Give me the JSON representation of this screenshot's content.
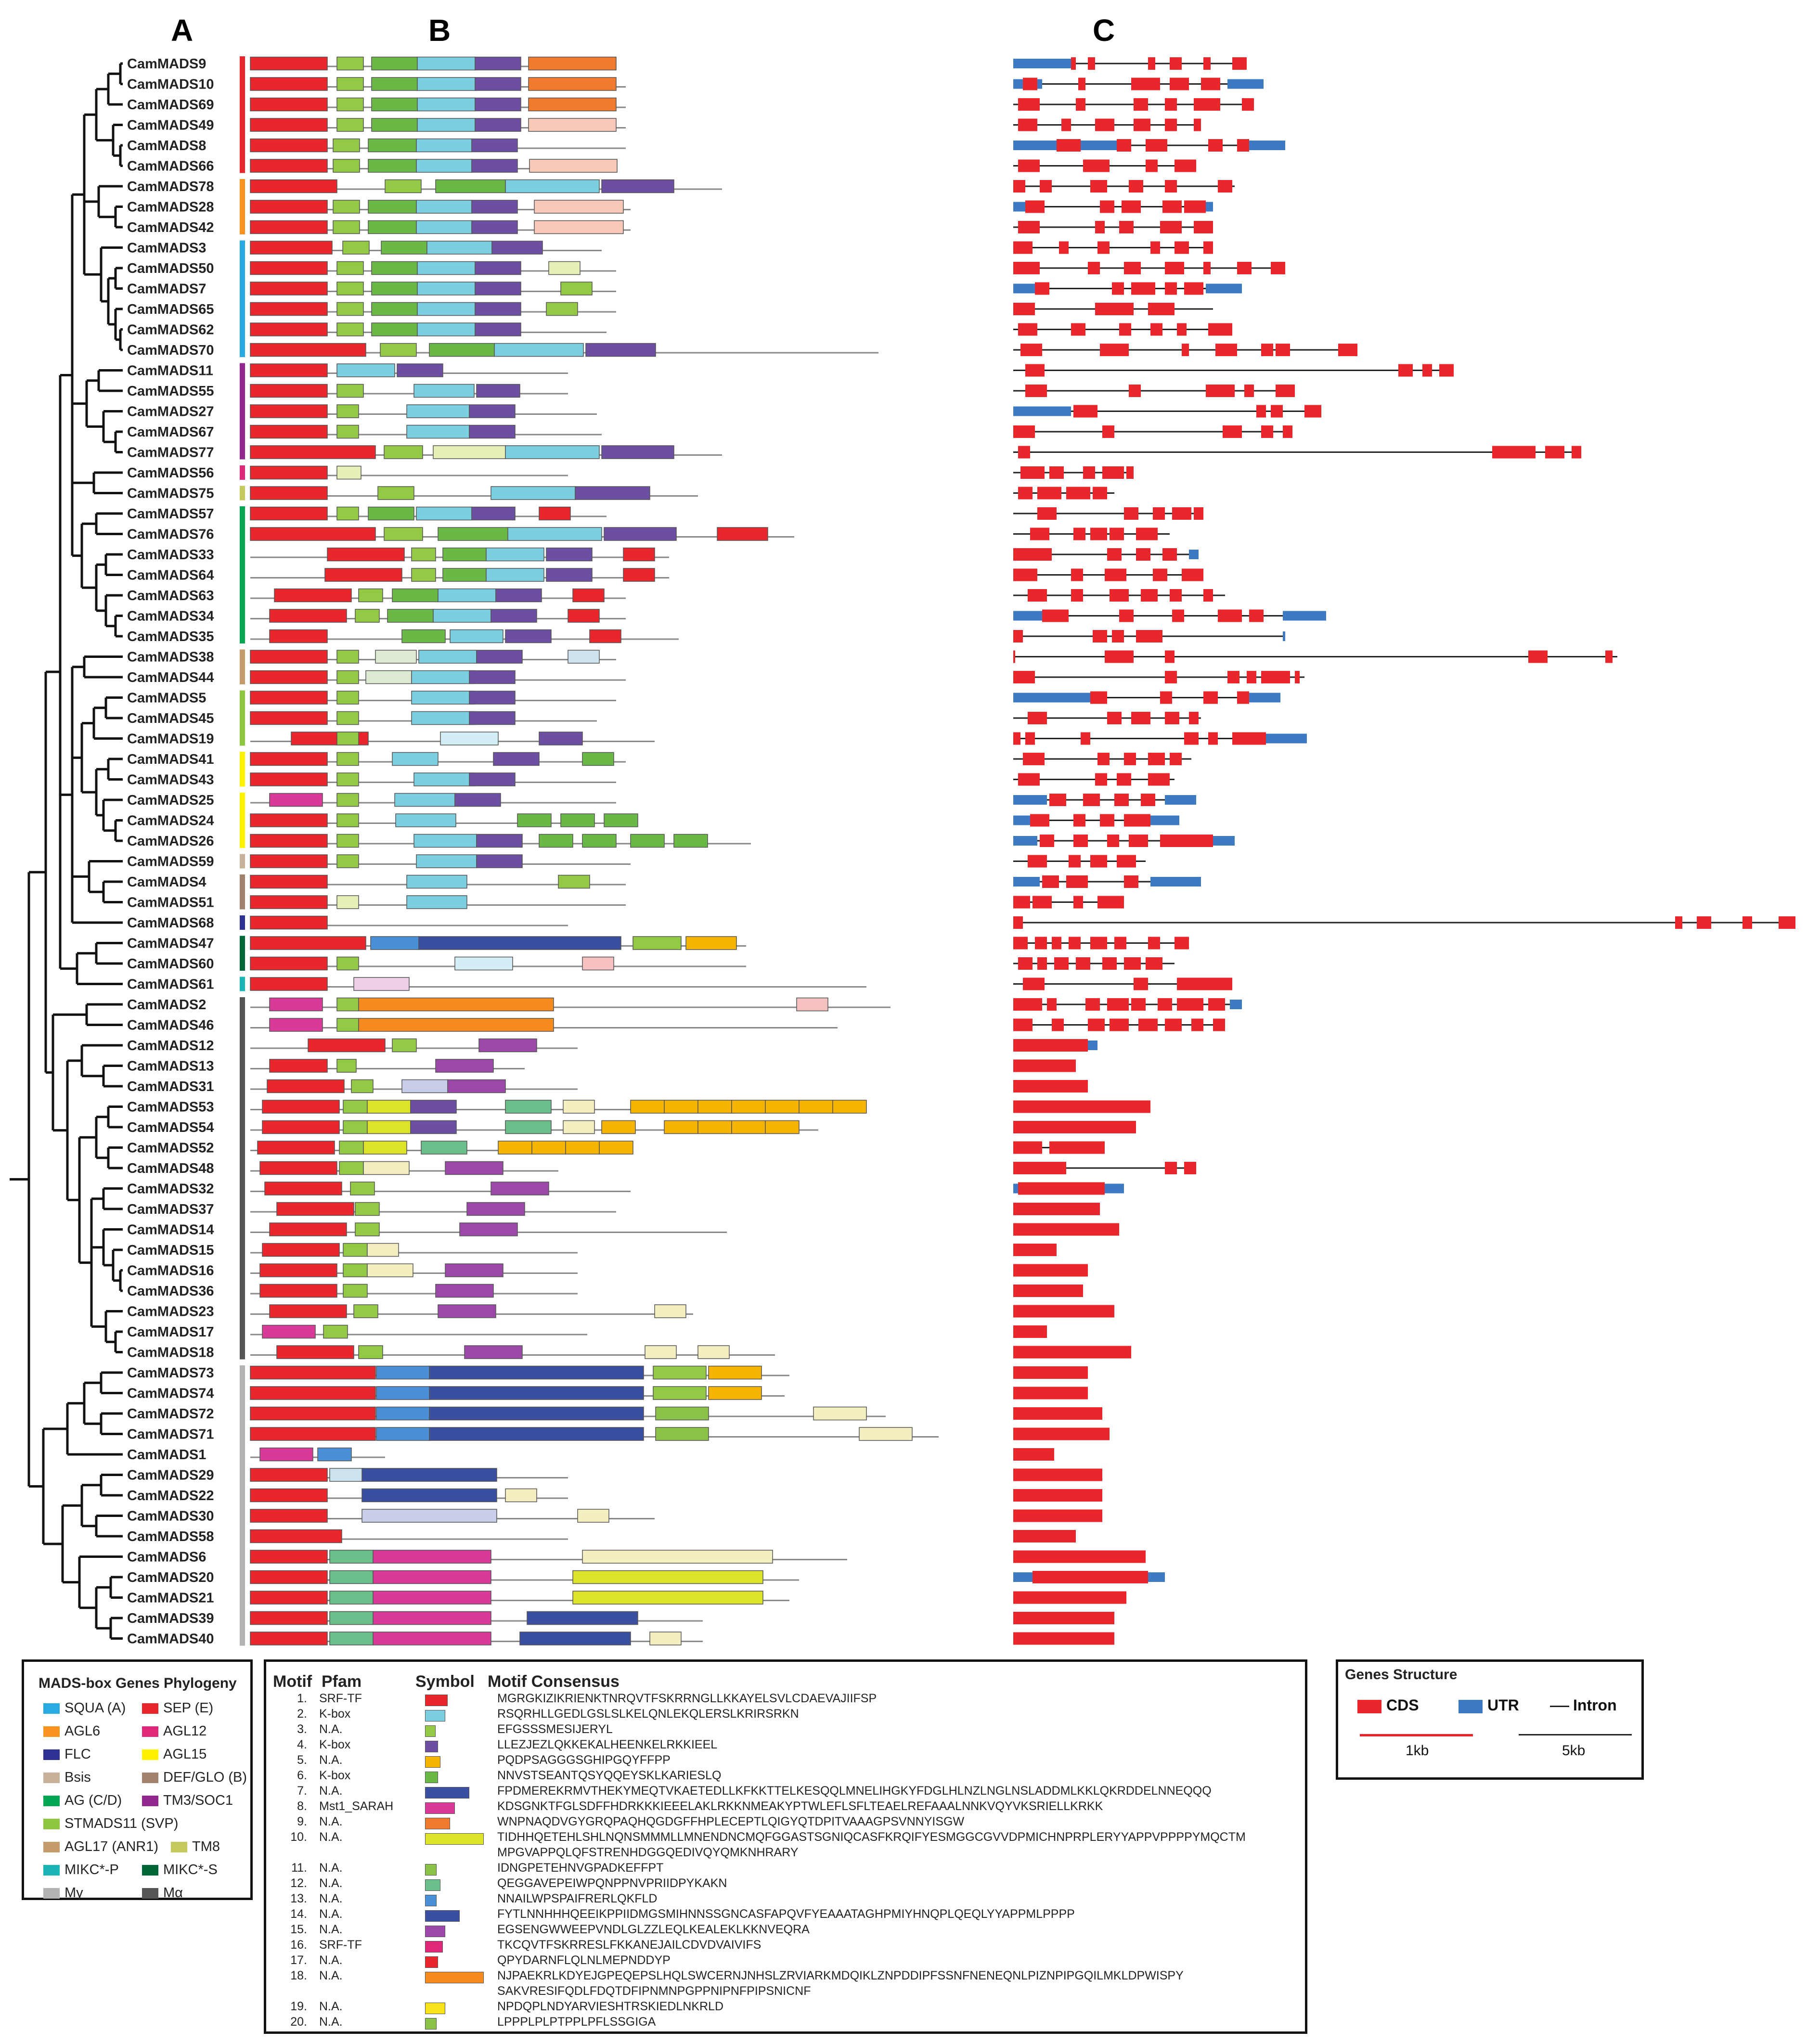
{
  "panels": {
    "a": "A",
    "b": "B",
    "c": "C"
  },
  "genes": [
    "CamMADS9",
    "CamMADS10",
    "CamMADS69",
    "CamMADS49",
    "CamMADS8",
    "CamMADS66",
    "CamMADS78",
    "CamMADS28",
    "CamMADS42",
    "CamMADS3",
    "CamMADS50",
    "CamMADS7",
    "CamMADS65",
    "CamMADS62",
    "CamMADS70",
    "CamMADS11",
    "CamMADS55",
    "CamMADS27",
    "CamMADS67",
    "CamMADS77",
    "CamMADS56",
    "CamMADS75",
    "CamMADS57",
    "CamMADS76",
    "CamMADS33",
    "CamMADS64",
    "CamMADS63",
    "CamMADS34",
    "CamMADS35",
    "CamMADS38",
    "CamMADS44",
    "CamMADS5",
    "CamMADS45",
    "CamMADS19",
    "CamMADS41",
    "CamMADS43",
    "CamMADS25",
    "CamMADS24",
    "CamMADS26",
    "CamMADS59",
    "CamMADS4",
    "CamMADS51",
    "CamMADS68",
    "CamMADS47",
    "CamMADS60",
    "CamMADS61",
    "CamMADS2",
    "CamMADS46",
    "CamMADS12",
    "CamMADS13",
    "CamMADS31",
    "CamMADS53",
    "CamMADS54",
    "CamMADS52",
    "CamMADS48",
    "CamMADS32",
    "CamMADS37",
    "CamMADS14",
    "CamMADS15",
    "CamMADS16",
    "CamMADS36",
    "CamMADS23",
    "CamMADS17",
    "CamMADS18",
    "CamMADS73",
    "CamMADS74",
    "CamMADS72",
    "CamMADS71",
    "CamMADS1",
    "CamMADS29",
    "CamMADS22",
    "CamMADS30",
    "CamMADS58",
    "CamMADS6",
    "CamMADS20",
    "CamMADS21",
    "CamMADS39",
    "CamMADS40"
  ],
  "colors": {
    "m1": "#e8262b",
    "m2": "#7ccfe0",
    "m3": "#93c945",
    "m4": "#6c4fa3",
    "m5": "#f4b400",
    "m6": "#6ab845",
    "m7": "#3a4fa0",
    "m8": "#d83a9a",
    "m9": "#f07a2e",
    "m10": "#dde22a",
    "m11": "#8bc34a",
    "m12": "#6abf8a",
    "m13": "#4a90d9",
    "m14": "#3a4fa0",
    "m15": "#9c48a8",
    "m16": "#e0287a",
    "m17": "#e8262b",
    "m18": "#f58a1f",
    "m19": "#f7e21c",
    "m20": "#8bc34a",
    "cds": "#e8262b",
    "utr": "#3e7ac3",
    "intron": "#222222",
    "line": "#888888"
  },
  "clades": [
    {
      "name": "SQUA (A)",
      "color": "#29abe2"
    },
    {
      "name": "SEP (E)",
      "color": "#e8262b"
    },
    {
      "name": "AGL6",
      "color": "#f7931e"
    },
    {
      "name": "AGL12",
      "color": "#e0287a"
    },
    {
      "name": "FLC",
      "color": "#2e3192"
    },
    {
      "name": "AGL15",
      "color": "#fff200"
    },
    {
      "name": "Bsis",
      "color": "#c7b299"
    },
    {
      "name": "DEF/GLO (B)",
      "color": "#a0826d"
    },
    {
      "name": "AG (C/D)",
      "color": "#00a651"
    },
    {
      "name": "TM3/SOC1",
      "color": "#92278f"
    },
    {
      "name": "STMADS11 (SVP)",
      "color": "#8dc63f"
    },
    {
      "name": "TM8",
      "color": "#c3c95c"
    },
    {
      "name": "AGL17 (ANR1)",
      "color": "#c69c6d"
    },
    {
      "name": "MIKC*-S",
      "color": "#006837"
    },
    {
      "name": "MIKC*-P",
      "color": "#1bb5b5"
    },
    {
      "name": "Mα",
      "color": "#555555"
    },
    {
      "name": "Mγ",
      "color": "#b3b3b3"
    }
  ],
  "legend_phylogeny": {
    "title": "MADS-box Genes Phylogeny"
  },
  "legend_motif": {
    "headers": {
      "motif": "Motif",
      "pfam": "Pfam",
      "symbol": "Symbol",
      "consensus": "Motif Consensus"
    },
    "rows": [
      {
        "num": "1.",
        "pfam": "SRF-TF",
        "seq": "MGRGKIZIKRIENKTNRQVTFSKRRNGLLKKAYELSVLCDAEVAJIIFSP"
      },
      {
        "num": "2.",
        "pfam": "K-box",
        "seq": "RSQRHLLGEDLGSLSLKELQNLEKQLERSLKRIRSRKN"
      },
      {
        "num": "3.",
        "pfam": "N.A.",
        "seq": "EFGSSSMESIJERYL"
      },
      {
        "num": "4.",
        "pfam": "K-box",
        "seq": "LLEZJEZLQKKEKALHEENKELRKKIEEL"
      },
      {
        "num": "5.",
        "pfam": "N.A.",
        "seq": "PQDPSAGGGSGHIPGQYFFPP"
      },
      {
        "num": "6.",
        "pfam": "K-box",
        "seq": "NNVSTSEANTQSYQQEYSKLKARIESLQ"
      },
      {
        "num": "7.",
        "pfam": "N.A.",
        "seq": "FPDMEREKRMVTHEKYMEQTVKAETEDLLKFKKTTELKESQQLMNELIHGKYFDGLHLNZLNGLNSLADDMLKKLQKRDDELNNEQQQ"
      },
      {
        "num": "8.",
        "pfam": "Mst1_SARAH",
        "seq": "KDSGNKTFGLSDFFHDRKKKIEEELAKLRKKNMEAKYPTWLEFLSFLTEAELREFAAALNNKVQYVKSRIELLKRKK"
      },
      {
        "num": "9.",
        "pfam": "N.A.",
        "seq": "WNPNAQDVGYGRQPAQHQGDGFFHPLECEPTLQIGYQTDPITVAAAGPSVNNYISGW"
      },
      {
        "num": "10.",
        "pfam": "N.A.",
        "seq": "TIDHHQETEHLSHLNQNSMMMLLMNENDNCMQFGGASTSGNIQCASFKRQIFYESMGGCGVVDPMICHNPRPLERYYAPPVPPPPYMQCTM"
      },
      {
        "num": "",
        "pfam": "",
        "seq": "MPGVAPPQLQFSTRENHDGGQEDIVQYQMKNHRARY"
      },
      {
        "num": "11.",
        "pfam": "N.A.",
        "seq": "IDNGPETEHNVGPADKEFFPT"
      },
      {
        "num": "12.",
        "pfam": "N.A.",
        "seq": "QEGGAVEPEIWPQNPPNVPRIIDPYKAKN"
      },
      {
        "num": "13.",
        "pfam": "N.A.",
        "seq": "NNAILWPSPAIFRERLQKFLD"
      },
      {
        "num": "14.",
        "pfam": "N.A.",
        "seq": "FYTLNNHHHQEEIKPPIIDMGSMIHNNSSGNCASFAPQVFYEAAATAGHPMIYHNQPLQEQLYYAPPMLPPPP"
      },
      {
        "num": "15.",
        "pfam": "N.A.",
        "seq": "EGSENGWWEEPVNDLGLZZLEQLKEALEKLKKNVEQRA"
      },
      {
        "num": "16.",
        "pfam": "SRF-TF",
        "seq": "TKCQVTFSKRRESLFKKANEJAILCDVDVAIVIFS"
      },
      {
        "num": "17.",
        "pfam": "N.A.",
        "seq": "QPYDARNFLQLNLMEPNDDYP"
      },
      {
        "num": "18.",
        "pfam": "N.A.",
        "seq": "NJPAEKRLKDYEJGPEQEPSLHQLSWCERNJNHSLZRVIARKMDQIKLZNPDDIPFSSNFNENEQNLPIZNPIPGQILMKLDPWISPY"
      },
      {
        "num": "",
        "pfam": "",
        "seq": "SAKVRESIFQDLFDQTDFIPNMNPGPPNIPNFPIPSNICNF"
      },
      {
        "num": "19.",
        "pfam": "N.A.",
        "seq": "NPDQPLNDYARVIESHTRSKIEDLNKRLD"
      },
      {
        "num": "20.",
        "pfam": "N.A.",
        "seq": "LPPPLPLPTPPLPFLSSGIGA"
      }
    ]
  },
  "legend_structure": {
    "title": "Genes Structure",
    "cds": "CDS",
    "utr": "UTR",
    "intron": "Intron",
    "scale1": "1kb",
    "scale2": "5kb"
  }
}
